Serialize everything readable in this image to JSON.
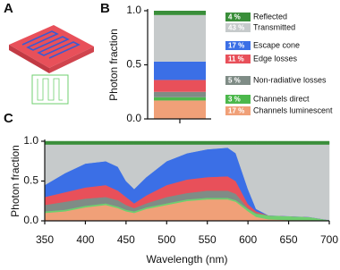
{
  "panels": [
    "A",
    "B",
    "C"
  ],
  "chart_data": [
    {
      "type": "bar",
      "ylabel": "Photon fraction",
      "categories": [
        null
      ],
      "ylim": [
        0,
        1
      ],
      "yticks": [
        {
          "value": 0,
          "label": "0.0"
        },
        {
          "value": 0.5,
          "label": "0.5"
        },
        {
          "value": 1,
          "label": "1.0"
        }
      ],
      "series": [
        {
          "name": "Channels luminescent",
          "color": "#f0a078",
          "values": [
            0.17
          ],
          "value_labels": [
            "17 %"
          ]
        },
        {
          "name": "Channels direct",
          "color": "#4cb84c",
          "values": [
            0.03
          ],
          "value_labels": [
            "3 %"
          ]
        },
        {
          "name": "Non-radiative losses",
          "color": "#7f8c86",
          "values": [
            0.05
          ],
          "value_labels": [
            "5 %"
          ]
        },
        {
          "name": "Edge losses",
          "color": "#e8505a",
          "values": [
            0.11
          ],
          "value_labels": [
            "11 %"
          ]
        },
        {
          "name": "Escape cone",
          "color": "#3b6fe6",
          "values": [
            0.17
          ],
          "value_labels": [
            "17 %"
          ]
        },
        {
          "name": "Transmitted",
          "color": "#c6cacb",
          "values": [
            0.43
          ],
          "value_labels": [
            "43 %"
          ]
        },
        {
          "name": "Reflected",
          "color": "#3a8e3a",
          "values": [
            0.04
          ],
          "value_labels": [
            "4 %"
          ]
        }
      ]
    },
    {
      "type": "area",
      "xlabel": "Wavelength (nm)",
      "ylabel": "Photon fraction",
      "x": [
        350,
        375,
        400,
        425,
        440,
        450,
        460,
        475,
        500,
        525,
        550,
        575,
        585,
        600,
        610,
        625,
        650,
        675,
        700
      ],
      "xlim": [
        350,
        700
      ],
      "xticks": [
        350,
        400,
        450,
        500,
        550,
        600,
        650,
        700
      ],
      "ylim": [
        0,
        1
      ],
      "yticks": [
        {
          "value": 0,
          "label": "0.0"
        },
        {
          "value": 0.5,
          "label": "0.5"
        },
        {
          "value": 1,
          "label": "1.0"
        }
      ],
      "series": [
        {
          "color": "#f0a078",
          "values": [
            0.1,
            0.12,
            0.17,
            0.2,
            0.16,
            0.12,
            0.1,
            0.15,
            0.2,
            0.25,
            0.27,
            0.27,
            0.24,
            0.12,
            0.05,
            0.02,
            0.01,
            0.01,
            0.0
          ]
        },
        {
          "color": "#6fcf6f",
          "values": [
            0.02,
            0.02,
            0.02,
            0.02,
            0.02,
            0.02,
            0.02,
            0.02,
            0.02,
            0.02,
            0.02,
            0.02,
            0.02,
            0.03,
            0.04,
            0.05,
            0.05,
            0.04,
            0.01
          ]
        },
        {
          "color": "#7f8c86",
          "values": [
            0.08,
            0.1,
            0.09,
            0.08,
            0.08,
            0.06,
            0.04,
            0.05,
            0.08,
            0.08,
            0.09,
            0.09,
            0.08,
            0.01,
            0.01,
            0,
            0,
            0,
            0
          ]
        },
        {
          "color": "#e8505a",
          "values": [
            0.1,
            0.12,
            0.14,
            0.15,
            0.12,
            0.1,
            0.06,
            0.1,
            0.15,
            0.17,
            0.17,
            0.18,
            0.16,
            0.05,
            0.02,
            0,
            0,
            0,
            0
          ]
        },
        {
          "color": "#3b6fe6",
          "values": [
            0.15,
            0.24,
            0.3,
            0.3,
            0.3,
            0.2,
            0.18,
            0.23,
            0.3,
            0.33,
            0.35,
            0.36,
            0.35,
            0.19,
            0.03,
            0,
            0,
            0,
            0
          ]
        },
        {
          "color": "#c6cacb",
          "values": [
            0.51,
            0.36,
            0.24,
            0.21,
            0.28,
            0.46,
            0.56,
            0.41,
            0.21,
            0.11,
            0.06,
            0.04,
            0.11,
            0.56,
            0.81,
            0.89,
            0.9,
            0.91,
            0.95
          ]
        },
        {
          "color": "#3a8e3a",
          "values": [
            0.04,
            0.04,
            0.04,
            0.04,
            0.04,
            0.04,
            0.04,
            0.04,
            0.04,
            0.04,
            0.04,
            0.04,
            0.04,
            0.04,
            0.04,
            0.04,
            0.04,
            0.04,
            0.04
          ]
        }
      ]
    }
  ]
}
